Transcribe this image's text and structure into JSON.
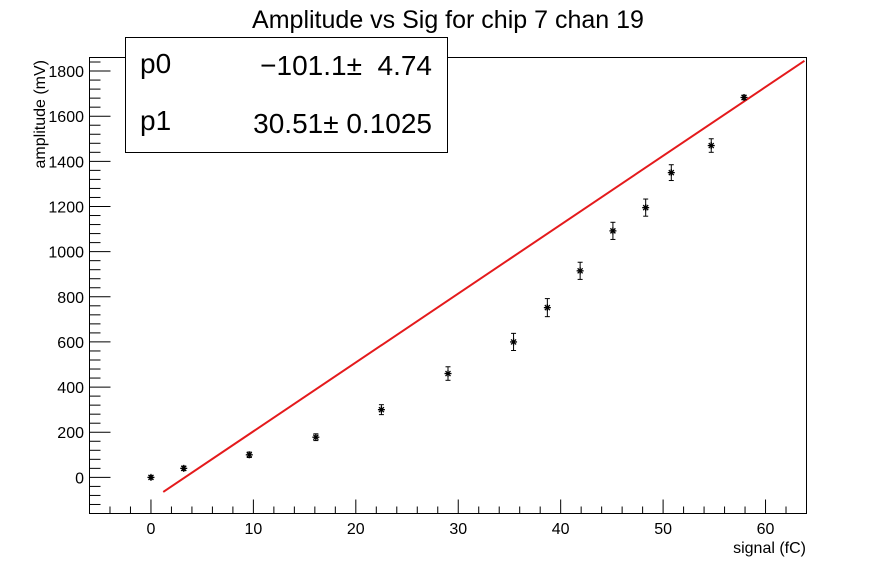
{
  "chart_data": {
    "type": "scatter",
    "title": "Amplitude vs Sig for chip 7 chan 19",
    "xlabel": "signal (fC)",
    "ylabel": "amplitude (mV)",
    "xlim": [
      -6,
      64
    ],
    "ylim": [
      -160,
      1860
    ],
    "xticks": [
      0,
      10,
      20,
      30,
      40,
      50,
      60
    ],
    "yticks": [
      0,
      200,
      400,
      600,
      800,
      1000,
      1200,
      1400,
      1600,
      1800
    ],
    "grid": false,
    "series": [
      {
        "points": [
          {
            "x": 0.0,
            "y": 0,
            "err": 8
          },
          {
            "x": 3.2,
            "y": 40,
            "err": 10
          },
          {
            "x": 9.6,
            "y": 100,
            "err": 12
          },
          {
            "x": 16.1,
            "y": 178,
            "err": 15
          },
          {
            "x": 22.5,
            "y": 300,
            "err": 22
          },
          {
            "x": 29.0,
            "y": 460,
            "err": 30
          },
          {
            "x": 35.4,
            "y": 600,
            "err": 38
          },
          {
            "x": 38.7,
            "y": 752,
            "err": 40
          },
          {
            "x": 41.9,
            "y": 915,
            "err": 38
          },
          {
            "x": 45.1,
            "y": 1092,
            "err": 38
          },
          {
            "x": 48.3,
            "y": 1195,
            "err": 38
          },
          {
            "x": 50.8,
            "y": 1350,
            "err": 35
          },
          {
            "x": 54.7,
            "y": 1470,
            "err": 30
          },
          {
            "x": 57.9,
            "y": 1683,
            "err": 10
          }
        ],
        "color": "#000000"
      }
    ],
    "fit": {
      "p0": -101.1,
      "p1": 30.51,
      "x_range": [
        1.2,
        63.8
      ],
      "color": "#e41a1c"
    },
    "stats_box": {
      "placement": "top-left",
      "rows": [
        {
          "name": "p0",
          "value": "−101.1±  4.74"
        },
        {
          "name": "p1",
          "value": "30.51± 0.1025"
        }
      ]
    }
  }
}
